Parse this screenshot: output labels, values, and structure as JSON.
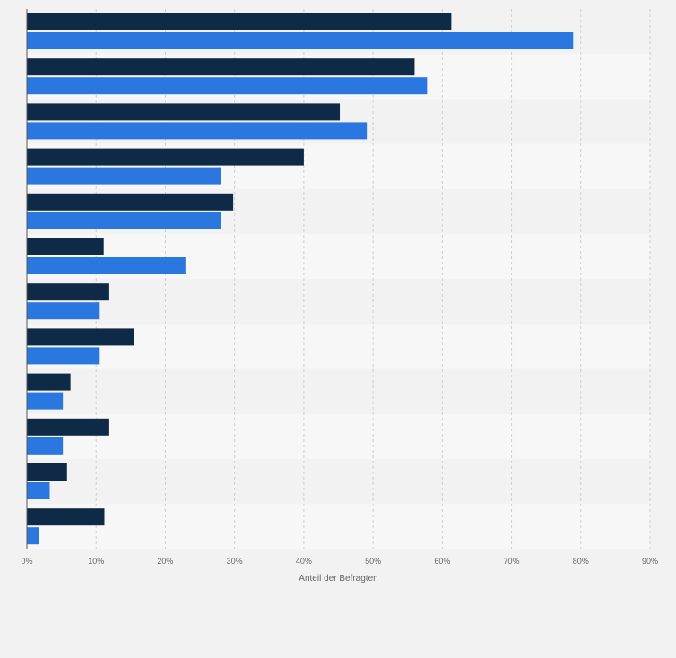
{
  "chart_data": {
    "type": "bar",
    "orientation": "horizontal",
    "categories": [
      "",
      "",
      "",
      "",
      "",
      "",
      "",
      "",
      "",
      "",
      "",
      ""
    ],
    "series": [
      {
        "color": "#0f2a46",
        "values": [
          61.3,
          56.0,
          45.2,
          40.0,
          29.8,
          11.1,
          11.9,
          15.5,
          6.3,
          11.9,
          5.8,
          11.2
        ]
      },
      {
        "color": "#2a77df",
        "values": [
          78.9,
          57.8,
          49.1,
          28.1,
          28.1,
          22.9,
          10.4,
          10.4,
          5.2,
          5.2,
          3.3,
          1.7
        ]
      }
    ],
    "xlim": [
      0,
      90
    ],
    "xticks": [
      0,
      10,
      20,
      30,
      40,
      50,
      60,
      70,
      80,
      90
    ],
    "tick_labels": [
      "0%",
      "10%",
      "20%",
      "30%",
      "40%",
      "50%",
      "60%",
      "70%",
      "80%",
      "90%"
    ],
    "xlabel": "Anteil der Befragten",
    "grid": true,
    "legend": "none"
  }
}
